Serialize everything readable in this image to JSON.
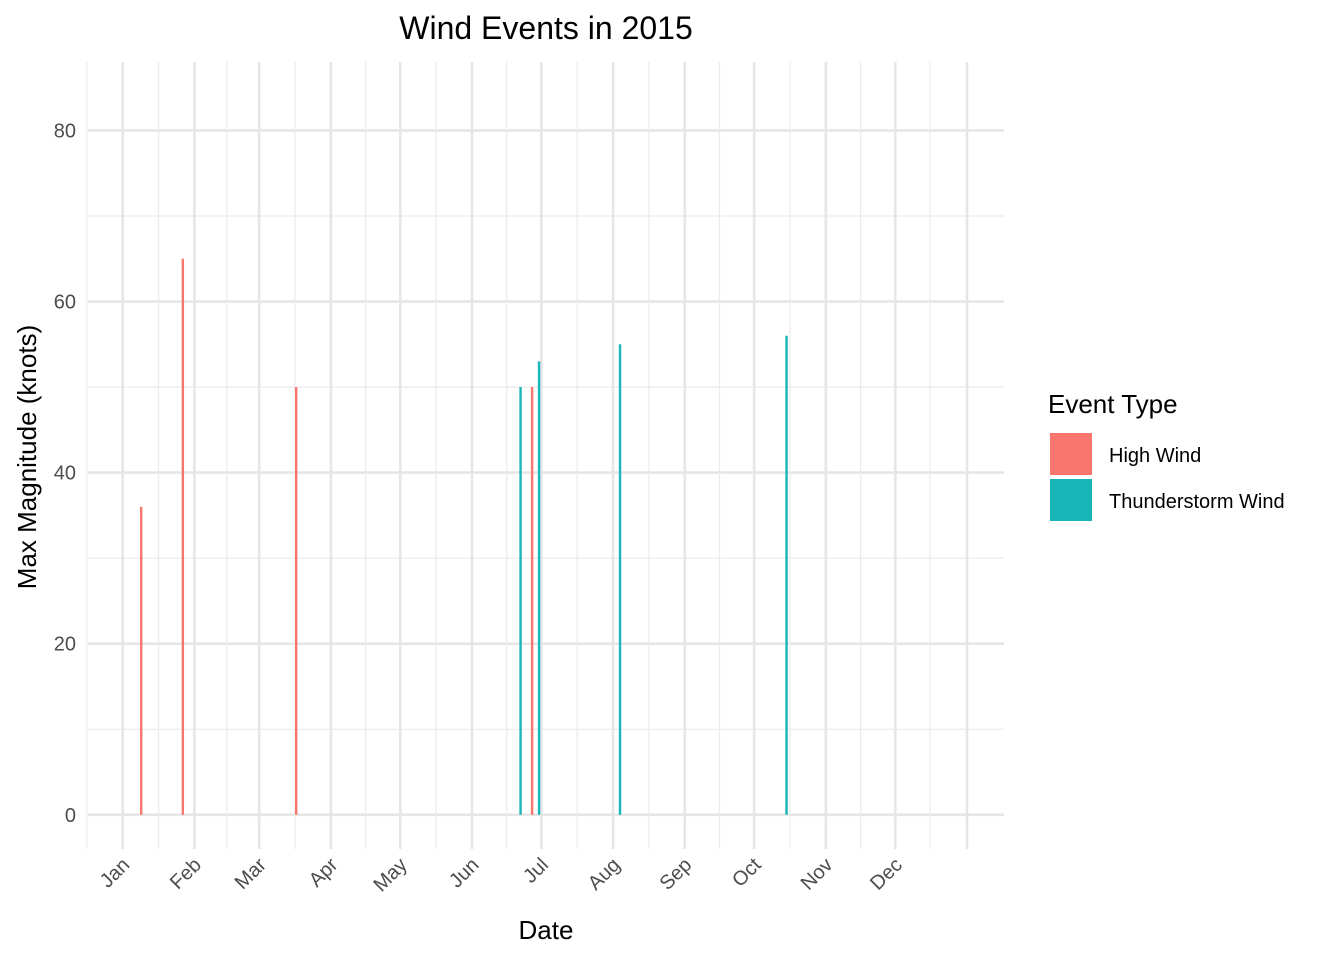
{
  "chart_data": {
    "type": "bar",
    "title": "Wind Events in 2015",
    "xlabel": "Date",
    "ylabel": "Max Magnitude (knots)",
    "x_axis": "date",
    "xlim": [
      "2014-12-17",
      "2016-01-17"
    ],
    "ylim": [
      -4,
      88
    ],
    "x_ticks": [
      {
        "date": "2015-01-01",
        "label": "Jan"
      },
      {
        "date": "2015-02-01",
        "label": "Feb"
      },
      {
        "date": "2015-03-01",
        "label": "Mar"
      },
      {
        "date": "2015-04-01",
        "label": "Apr"
      },
      {
        "date": "2015-05-01",
        "label": "May"
      },
      {
        "date": "2015-06-01",
        "label": "Jun"
      },
      {
        "date": "2015-07-01",
        "label": "Jul"
      },
      {
        "date": "2015-08-01",
        "label": "Aug"
      },
      {
        "date": "2015-09-01",
        "label": "Sep"
      },
      {
        "date": "2015-10-01",
        "label": "Oct"
      },
      {
        "date": "2015-11-01",
        "label": "Nov"
      },
      {
        "date": "2015-12-01",
        "label": "Dec"
      }
    ],
    "x_tick_label_angle": 45,
    "y_ticks": [
      0,
      20,
      40,
      60,
      80
    ],
    "grid": true,
    "legend": {
      "title": "Event Type",
      "position": "right"
    },
    "series": [
      {
        "name": "High Wind",
        "color": "#f8766d",
        "points": [
          {
            "x": "2015-01-09",
            "y": 36
          },
          {
            "x": "2015-01-27",
            "y": 65
          },
          {
            "x": "2015-03-17",
            "y": 50
          },
          {
            "x": "2015-06-27",
            "y": 50
          }
        ]
      },
      {
        "name": "Thunderstorm Wind",
        "color": "#19b5b9",
        "points": [
          {
            "x": "2015-06-22",
            "y": 50
          },
          {
            "x": "2015-06-30",
            "y": 53
          },
          {
            "x": "2015-08-04",
            "y": 55
          },
          {
            "x": "2015-10-15",
            "y": 56
          }
        ]
      }
    ]
  }
}
